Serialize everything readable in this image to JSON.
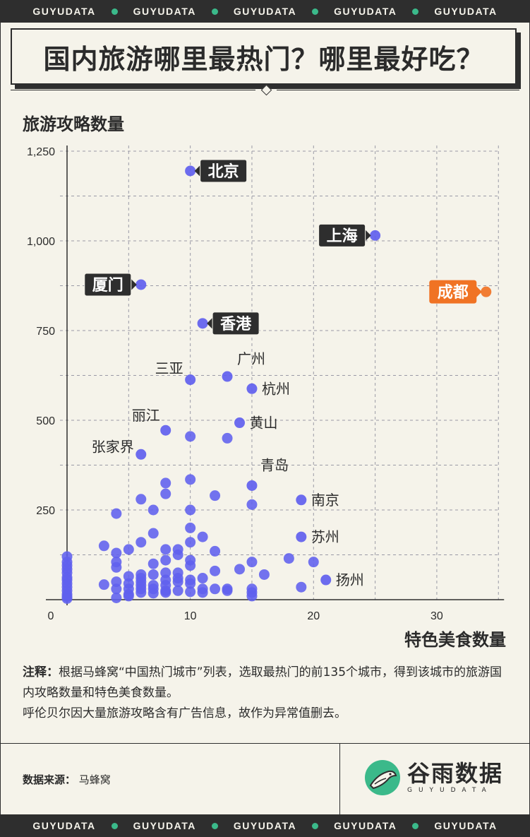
{
  "banner": {
    "items": [
      "GUYUDATA",
      "GUYUDATA",
      "GUYUDATA",
      "GUYUDATA",
      "GUYUDATA"
    ]
  },
  "title": "国内旅游哪里最热门？哪里最好吃？",
  "y_axis_title": "旅游攻略数量",
  "x_axis_title": "特色美食数量",
  "note": {
    "label": "注释：",
    "text": "根据马蜂窝“中国热门城市”列表，选取最热门的前135个城市，得到该城市的旅游国内攻略数量和特色美食数量。",
    "line2": "呼伦贝尔因大量旅游攻略含有广告信息，故作为异常值删去。"
  },
  "source": {
    "label": "数据来源：",
    "value": "马蜂窝"
  },
  "logo": {
    "cn": "谷雨数据",
    "en": "GUYUDATA"
  },
  "colors": {
    "point": "#6060ee",
    "highlight": "#f07324",
    "label_bg": "#2e2e2e",
    "accent": "#3bb98a",
    "background": "#f5f3ea"
  },
  "chart_data": {
    "type": "scatter",
    "xlim": [
      0,
      35
    ],
    "ylim": [
      0,
      1250
    ],
    "x_ticks": [
      0,
      10,
      20,
      30
    ],
    "y_ticks": [
      250,
      500,
      750,
      1000,
      1250
    ],
    "x_tick_labels": [
      "0",
      "10",
      "20",
      "30"
    ],
    "y_tick_labels": [
      "250",
      "500",
      "750",
      "1,000",
      "1,250"
    ],
    "grid": true,
    "labeled_points": [
      {
        "name": "北京",
        "x": 10,
        "y": 1195,
        "style": "box"
      },
      {
        "name": "上海",
        "x": 25,
        "y": 1015,
        "style": "box"
      },
      {
        "name": "厦门",
        "x": 6,
        "y": 878,
        "style": "box"
      },
      {
        "name": "成都",
        "x": 34,
        "y": 858,
        "style": "box-highlight"
      },
      {
        "name": "香港",
        "x": 11,
        "y": 770,
        "style": "box"
      },
      {
        "name": "广州",
        "x": 13,
        "y": 622,
        "style": "text"
      },
      {
        "name": "三亚",
        "x": 10,
        "y": 613,
        "style": "text"
      },
      {
        "name": "杭州",
        "x": 15,
        "y": 588,
        "style": "text"
      },
      {
        "name": "黄山",
        "x": 14,
        "y": 493,
        "style": "text"
      },
      {
        "name": "丽江",
        "x": 8,
        "y": 472,
        "style": "text"
      },
      {
        "name": "张家界",
        "x": 6,
        "y": 405,
        "style": "text"
      },
      {
        "name": "青岛",
        "x": 15,
        "y": 318,
        "style": "text"
      },
      {
        "name": "南京",
        "x": 19,
        "y": 278,
        "style": "text"
      },
      {
        "name": "苏州",
        "x": 19,
        "y": 175,
        "style": "text"
      },
      {
        "name": "扬州",
        "x": 21,
        "y": 55,
        "style": "text"
      }
    ],
    "points": [
      [
        0,
        120
      ],
      [
        0,
        105
      ],
      [
        0,
        95
      ],
      [
        0,
        85
      ],
      [
        0,
        75
      ],
      [
        0,
        62
      ],
      [
        0,
        55
      ],
      [
        0,
        45
      ],
      [
        0,
        35
      ],
      [
        0,
        25
      ],
      [
        0,
        15
      ],
      [
        0,
        8
      ],
      [
        0,
        3
      ],
      [
        3,
        150
      ],
      [
        3,
        42
      ],
      [
        4,
        240
      ],
      [
        4,
        130
      ],
      [
        4,
        105
      ],
      [
        4,
        90
      ],
      [
        4,
        50
      ],
      [
        4,
        30
      ],
      [
        4,
        5
      ],
      [
        5,
        140
      ],
      [
        5,
        65
      ],
      [
        5,
        45
      ],
      [
        5,
        30
      ],
      [
        5,
        15
      ],
      [
        5,
        10
      ],
      [
        6,
        280
      ],
      [
        6,
        160
      ],
      [
        6,
        70
      ],
      [
        6,
        60
      ],
      [
        6,
        50
      ],
      [
        6,
        40
      ],
      [
        6,
        30
      ],
      [
        6,
        20
      ],
      [
        7,
        250
      ],
      [
        7,
        185
      ],
      [
        7,
        100
      ],
      [
        7,
        70
      ],
      [
        7,
        40
      ],
      [
        7,
        30
      ],
      [
        7,
        18
      ],
      [
        8,
        325
      ],
      [
        8,
        295
      ],
      [
        8,
        140
      ],
      [
        8,
        110
      ],
      [
        8,
        75
      ],
      [
        8,
        55
      ],
      [
        8,
        40
      ],
      [
        8,
        25
      ],
      [
        8,
        20
      ],
      [
        9,
        140
      ],
      [
        9,
        125
      ],
      [
        9,
        75
      ],
      [
        9,
        60
      ],
      [
        9,
        50
      ],
      [
        9,
        25
      ],
      [
        10,
        455
      ],
      [
        10,
        335
      ],
      [
        10,
        250
      ],
      [
        10,
        200
      ],
      [
        10,
        160
      ],
      [
        10,
        110
      ],
      [
        10,
        95
      ],
      [
        10,
        55
      ],
      [
        10,
        45
      ],
      [
        10,
        22
      ],
      [
        11,
        175
      ],
      [
        11,
        60
      ],
      [
        11,
        30
      ],
      [
        11,
        20
      ],
      [
        12,
        290
      ],
      [
        12,
        135
      ],
      [
        12,
        80
      ],
      [
        12,
        30
      ],
      [
        13,
        450
      ],
      [
        13,
        30
      ],
      [
        13,
        25
      ],
      [
        14,
        85
      ],
      [
        15,
        265
      ],
      [
        15,
        105
      ],
      [
        15,
        30
      ],
      [
        15,
        20
      ],
      [
        15,
        10
      ],
      [
        16,
        70
      ],
      [
        18,
        115
      ],
      [
        19,
        35
      ],
      [
        20,
        105
      ]
    ]
  }
}
